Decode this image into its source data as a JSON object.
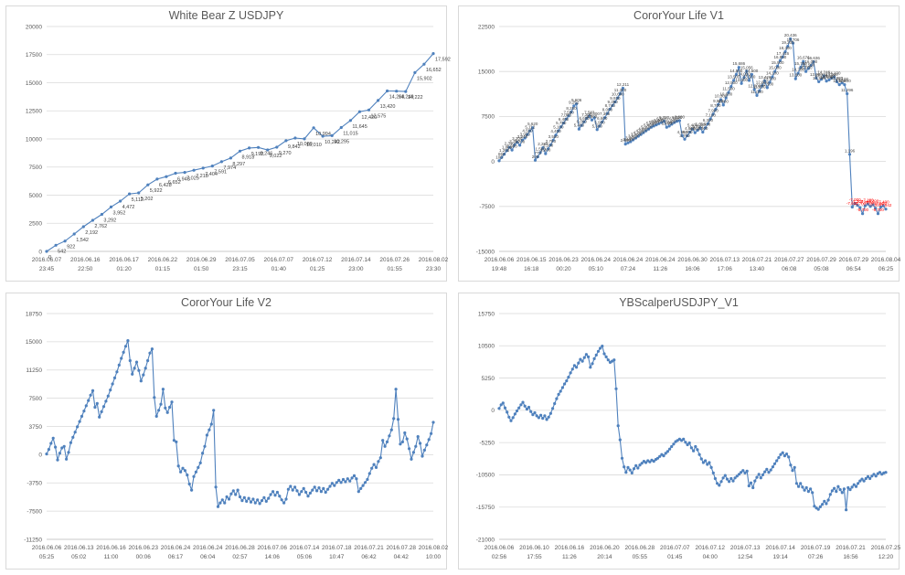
{
  "colors": {
    "series": "#4f81bd",
    "grid": "#d9d9d9",
    "axis_text": "#595959",
    "data_label": "#404040",
    "negative_label": "#ff0000",
    "panel_border": "#d9d9d9",
    "background": "#ffffff"
  },
  "chart_data": [
    {
      "type": "line",
      "title": "White Bear Z USDJPY",
      "color": "#4f81bd",
      "show_point_labels": true,
      "label_placement": "below",
      "negative_label_color": null,
      "y_axis": {
        "min": 0,
        "max": 20000,
        "step": 2500
      },
      "x_labels": [
        {
          "date": "2016.06.07",
          "time": "23:45"
        },
        {
          "date": "2016.06.16",
          "time": "22:50"
        },
        {
          "date": "2016.06.17",
          "time": "01:20"
        },
        {
          "date": "2016.06.22",
          "time": "01:15"
        },
        {
          "date": "2016.06.29",
          "time": "01:50"
        },
        {
          "date": "2016.07.05",
          "time": "23:15"
        },
        {
          "date": "2016.07.07",
          "time": "01:40"
        },
        {
          "date": "2016.07.12",
          "time": "01:25"
        },
        {
          "date": "2016.07.14",
          "time": "23:00"
        },
        {
          "date": "2016.07.26",
          "time": "01:55"
        },
        {
          "date": "2016.08.02",
          "time": "23:30"
        }
      ],
      "values": [
        0,
        542,
        922,
        1542,
        2192,
        2762,
        3292,
        3952,
        4472,
        5112,
        5202,
        5922,
        6428,
        6652,
        6948,
        7025,
        7218,
        7404,
        7591,
        7974,
        8297,
        8918,
        9192,
        9246,
        9022,
        9270,
        9842,
        10080,
        10010,
        10994,
        10242,
        10295,
        11015,
        11645,
        12420,
        12575,
        13420,
        14268,
        14249,
        14222,
        15902,
        16652,
        17592
      ]
    },
    {
      "type": "line",
      "title": "CororYour Life V1",
      "color": "#4f81bd",
      "show_point_labels": true,
      "label_placement": "above",
      "negative_label_color": "#ff0000",
      "y_axis": {
        "min": -15000,
        "max": 22500,
        "step": 7500
      },
      "x_labels": [
        {
          "date": "2016.06.06",
          "time": "19:48"
        },
        {
          "date": "2016.06.15",
          "time": "16:18"
        },
        {
          "date": "2016.06.23",
          "time": "00:20"
        },
        {
          "date": "2016.06.24",
          "time": "05:10"
        },
        {
          "date": "2016.06.24",
          "time": "07:24"
        },
        {
          "date": "2016.06.24",
          "time": "11:26"
        },
        {
          "date": "2016.06.30",
          "time": "16:06"
        },
        {
          "date": "2016.07.13",
          "time": "17:06"
        },
        {
          "date": "2016.07.21",
          "time": "13:40"
        },
        {
          "date": "2016.07.27",
          "time": "06:08"
        },
        {
          "date": "2016.07.29",
          "time": "05:08"
        },
        {
          "date": "2016.07.29",
          "time": "06:54"
        },
        {
          "date": "2016.08.04",
          "time": "06:25"
        }
      ],
      "values": [
        100,
        650,
        1200,
        1800,
        2340,
        1900,
        2760,
        3200,
        2700,
        3548,
        3900,
        4500,
        5112,
        5620,
        200,
        772,
        1500,
        2288,
        1300,
        2100,
        2763,
        3550,
        4400,
        5100,
        5780,
        6400,
        7080,
        7590,
        8250,
        9252,
        9606,
        5400,
        6000,
        6600,
        7200,
        7583,
        6900,
        7300,
        5300,
        5900,
        6600,
        7300,
        8000,
        8740,
        9350,
        9930,
        10600,
        11300,
        12211,
        2900,
        3100,
        3300,
        3600,
        3900,
        4200,
        4500,
        4800,
        5100,
        5400,
        5700,
        5900,
        6100,
        6300,
        6500,
        6700,
        5700,
        5900,
        6200,
        6500,
        6700,
        6800,
        4300,
        3700,
        4300,
        4900,
        5400,
        4800,
        5200,
        5600,
        4900,
        5600,
        6300,
        7100,
        7900,
        8700,
        9500,
        10300,
        9400,
        10600,
        11500,
        12500,
        13500,
        14500,
        15686,
        13000,
        14000,
        15056,
        13500,
        14500,
        12000,
        11000,
        11800,
        12600,
        13426,
        12300,
        13200,
        14100,
        15000,
        15900,
        16800,
        17416,
        18300,
        19200,
        20436,
        19706,
        13800,
        14700,
        15700,
        16676,
        15000,
        15500,
        16000,
        16636,
        13900,
        13300,
        13700,
        14246,
        13400,
        13600,
        13900,
        14100,
        13300,
        12800,
        13100,
        12800,
        11296,
        1196,
        -7600,
        -7000,
        -7300,
        -7700,
        -8700,
        -7400,
        -7100,
        -7500,
        -7200,
        -7800,
        -8700,
        -7600,
        -7400,
        -7942
      ]
    },
    {
      "type": "line",
      "title": "CororYour Life V2",
      "color": "#4f81bd",
      "show_point_labels": false,
      "label_placement": "above",
      "negative_label_color": null,
      "y_axis": {
        "min": -11250,
        "max": 18750,
        "step": 3750
      },
      "x_labels": [
        {
          "date": "2016.06.06",
          "time": "05:25"
        },
        {
          "date": "2016.06.13",
          "time": "05:02"
        },
        {
          "date": "2016.06.16",
          "time": "11:00"
        },
        {
          "date": "2016.06.23",
          "time": "00:06"
        },
        {
          "date": "2016.06.24",
          "time": "06:17"
        },
        {
          "date": "2016.06.24",
          "time": "06:04"
        },
        {
          "date": "2016.06.28",
          "time": "02:57"
        },
        {
          "date": "2016.07.06",
          "time": "14:06"
        },
        {
          "date": "2016.07.14",
          "time": "05:06"
        },
        {
          "date": "2016.07.18",
          "time": "10:47"
        },
        {
          "date": "2016.07.21",
          "time": "06:42"
        },
        {
          "date": "2016.07.28",
          "time": "04:42"
        },
        {
          "date": "2016.08.02",
          "time": "10:00"
        }
      ],
      "values": [
        100,
        700,
        1500,
        2200,
        1000,
        -700,
        200,
        900,
        1100,
        -600,
        300,
        1600,
        2300,
        3000,
        3700,
        4400,
        5100,
        5800,
        6500,
        7200,
        7900,
        8500,
        6300,
        6800,
        5000,
        5700,
        6400,
        7100,
        7800,
        8600,
        9400,
        10200,
        11000,
        11900,
        12800,
        13600,
        14400,
        15150,
        12500,
        10700,
        11500,
        12300,
        11200,
        9800,
        10600,
        11500,
        12500,
        13500,
        14050,
        7600,
        5100,
        5900,
        6700,
        8700,
        6200,
        5600,
        6300,
        7000,
        1900,
        1700,
        -1500,
        -2300,
        -1800,
        -2100,
        -2700,
        -3900,
        -4700,
        -2900,
        -2300,
        -1700,
        -1100,
        200,
        1100,
        2600,
        3300,
        4050,
        5900,
        -4300,
        -6900,
        -6400,
        -6000,
        -6400,
        -5600,
        -5900,
        -5200,
        -4800,
        -5300,
        -4700,
        -5600,
        -6100,
        -5700,
        -6200,
        -5800,
        -6300,
        -5900,
        -6400,
        -6000,
        -6500,
        -6100,
        -5700,
        -6200,
        -5800,
        -5300,
        -4900,
        -5400,
        -5000,
        -5500,
        -6000,
        -6400,
        -5900,
        -4600,
        -4200,
        -4700,
        -4300,
        -4800,
        -5300,
        -4900,
        -4500,
        -5000,
        -5500,
        -5100,
        -4700,
        -4300,
        -4800,
        -4400,
        -4900,
        -4500,
        -5000,
        -4600,
        -4200,
        -3800,
        -4100,
        -3700,
        -3400,
        -3700,
        -3300,
        -3600,
        -3200,
        -3500,
        -3100,
        -2800,
        -3200,
        -4900,
        -4500,
        -4100,
        -3700,
        -3300,
        -2500,
        -1800,
        -1300,
        -1700,
        -900,
        -400,
        1900,
        1100,
        1700,
        2500,
        3300,
        4800,
        8700,
        4700,
        1400,
        1700,
        2900,
        2100,
        800,
        -600,
        300,
        1100,
        2400,
        1500,
        -200,
        600,
        1300,
        2000,
        2800,
        4300
      ]
    },
    {
      "type": "line",
      "title": "YBScalperUSDJPY_V1",
      "color": "#4f81bd",
      "show_point_labels": false,
      "label_placement": "above",
      "negative_label_color": null,
      "y_axis": {
        "min": -21000,
        "max": 15750,
        "step": 5250
      },
      "x_labels": [
        {
          "date": "2016.06.06",
          "time": "02:56"
        },
        {
          "date": "2016.06.10",
          "time": "17:55"
        },
        {
          "date": "2016.06.16",
          "time": "11:26"
        },
        {
          "date": "2016.06.20",
          "time": "20:14"
        },
        {
          "date": "2016.06.28",
          "time": "05:55"
        },
        {
          "date": "2016.07.07",
          "time": "01:45"
        },
        {
          "date": "2016.07.12",
          "time": "04:00"
        },
        {
          "date": "2016.07.13",
          "time": "12:54"
        },
        {
          "date": "2016.07.14",
          "time": "19:14"
        },
        {
          "date": "2016.07.19",
          "time": "07:26"
        },
        {
          "date": "2016.07.21",
          "time": "16:56"
        },
        {
          "date": "2016.07.25",
          "time": "12:20"
        }
      ],
      "values": [
        300,
        900,
        1200,
        400,
        -300,
        -1100,
        -1700,
        -1200,
        -600,
        -100,
        400,
        900,
        1300,
        700,
        200,
        500,
        -200,
        -700,
        -400,
        -900,
        -1200,
        -800,
        -1300,
        -900,
        -1500,
        -1100,
        -500,
        300,
        1100,
        1900,
        2600,
        3100,
        3700,
        4300,
        4800,
        5400,
        6100,
        6700,
        7300,
        7000,
        7700,
        8300,
        8000,
        8600,
        9100,
        8700,
        7000,
        7600,
        8400,
        9000,
        9600,
        10100,
        10450,
        9200,
        8700,
        8200,
        7800,
        8000,
        8200,
        3500,
        -2500,
        -4800,
        -7800,
        -9200,
        -10100,
        -9300,
        -9700,
        -10200,
        -9500,
        -9000,
        -9400,
        -8900,
        -8600,
        -8300,
        -8500,
        -8200,
        -8400,
        -8100,
        -8300,
        -8000,
        -7800,
        -7500,
        -7200,
        -7400,
        -7000,
        -6700,
        -6300,
        -5900,
        -5500,
        -5100,
        -4900,
        -4700,
        -4900,
        -4700,
        -5200,
        -5600,
        -5300,
        -6100,
        -6600,
        -5900,
        -6400,
        -7200,
        -7900,
        -8500,
        -8200,
        -8800,
        -8500,
        -9300,
        -10200,
        -11100,
        -11900,
        -12200,
        -11600,
        -11000,
        -10600,
        -11200,
        -11600,
        -11100,
        -11500,
        -11000,
        -10700,
        -10400,
        -10100,
        -9800,
        -10200,
        -9900,
        -12300,
        -11800,
        -12600,
        -11500,
        -10900,
        -10400,
        -11000,
        -10500,
        -10000,
        -9600,
        -10100,
        -9700,
        -9200,
        -8700,
        -8200,
        -7700,
        -7200,
        -6900,
        -7400,
        -7100,
        -7600,
        -8900,
        -9800,
        -9300,
        -11900,
        -12400,
        -11900,
        -12500,
        -13000,
        -12600,
        -13200,
        -12800,
        -13400,
        -15600,
        -15900,
        -16100,
        -15700,
        -15300,
        -14800,
        -15200,
        -14600,
        -13700,
        -13100,
        -12700,
        -13200,
        -12400,
        -12900,
        -13400,
        -12800,
        -16200,
        -12600,
        -12900,
        -12500,
        -12100,
        -12400,
        -11900,
        -11500,
        -11200,
        -11500,
        -11100,
        -10800,
        -11100,
        -10700,
        -10400,
        -10700,
        -10300,
        -10100,
        -10400,
        -10200,
        -10100
      ]
    }
  ]
}
